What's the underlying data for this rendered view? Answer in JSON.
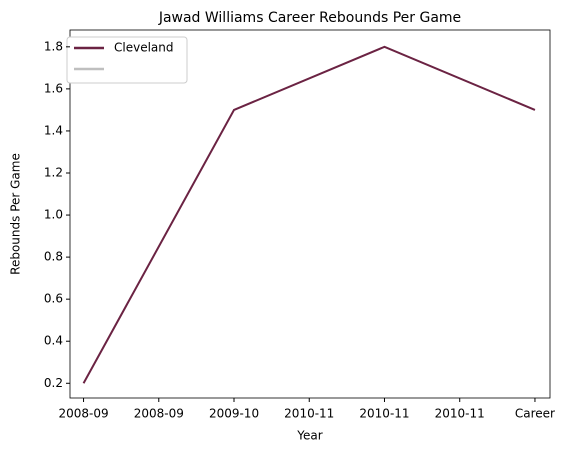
{
  "chart_data": {
    "type": "line",
    "title": "Jawad Williams Career Rebounds Per Game",
    "xlabel": "Year",
    "ylabel": "Rebounds Per Game",
    "x": [
      0,
      1,
      2,
      3
    ],
    "series": [
      {
        "name": "Cleveland",
        "color": "#6b2343",
        "values": [
          0.2,
          1.5,
          1.8,
          1.5
        ]
      }
    ],
    "xlim": [
      -0.09,
      3.1
    ],
    "xticks": [
      {
        "value": 0,
        "label": "2008-09"
      },
      {
        "value": 0.5,
        "label": "2008-09"
      },
      {
        "value": 1,
        "label": "2009-10"
      },
      {
        "value": 1.5,
        "label": "2010-11"
      },
      {
        "value": 2,
        "label": "2010-11"
      },
      {
        "value": 2.5,
        "label": "2010-11"
      },
      {
        "value": 3,
        "label": "Career"
      }
    ],
    "ylim": [
      0.13,
      1.88
    ],
    "yticks": [
      {
        "value": 0.2,
        "label": "0.2"
      },
      {
        "value": 0.4,
        "label": "0.4"
      },
      {
        "value": 0.6,
        "label": "0.6"
      },
      {
        "value": 0.8,
        "label": "0.8"
      },
      {
        "value": 1.0,
        "label": "1.0"
      },
      {
        "value": 1.2,
        "label": "1.2"
      },
      {
        "value": 1.4,
        "label": "1.4"
      },
      {
        "value": 1.6,
        "label": "1.6"
      },
      {
        "value": 1.8,
        "label": "1.8"
      }
    ],
    "legend": "upper left",
    "grid": false
  }
}
